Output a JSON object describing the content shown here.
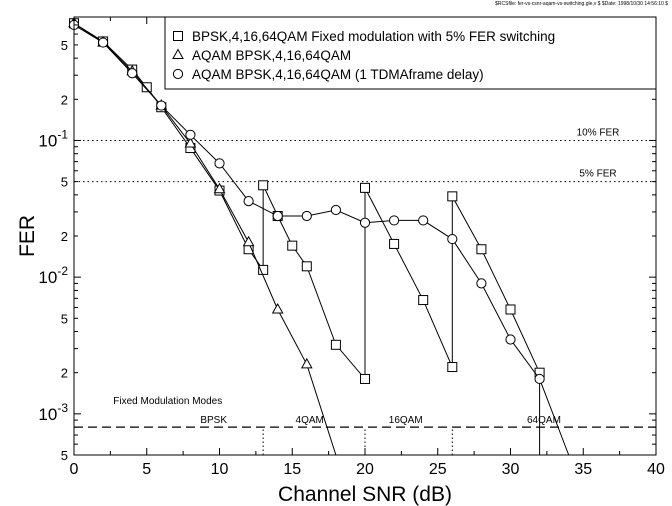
{
  "header_note": "$RCSfile: fer-vs-csnr-aqam-vs-switching.gle,v $ $Date: 1998/10/30 14:56:10 $",
  "chart_data": {
    "type": "line",
    "xlabel": "Channel SNR (dB)",
    "ylabel": "FER",
    "xlim": [
      0,
      40
    ],
    "ylim": [
      0.0005,
      0.8
    ],
    "y_scale": "log",
    "grid": false,
    "legend_position": "top-right",
    "x_ticks": [
      "0",
      "5",
      "10",
      "15",
      "20",
      "25",
      "30",
      "35",
      "40"
    ],
    "y_ticks": [
      {
        "value": 0.5,
        "mant": "5",
        "exp": ""
      },
      {
        "value": 0.2,
        "mant": "2",
        "exp": ""
      },
      {
        "value": 0.1,
        "mant": "10",
        "exp": "-1"
      },
      {
        "value": 0.05,
        "mant": "5",
        "exp": ""
      },
      {
        "value": 0.02,
        "mant": "2",
        "exp": ""
      },
      {
        "value": 0.01,
        "mant": "10",
        "exp": "-2"
      },
      {
        "value": 0.005,
        "mant": "5",
        "exp": ""
      },
      {
        "value": 0.002,
        "mant": "2",
        "exp": ""
      },
      {
        "value": 0.001,
        "mant": "10",
        "exp": "-3"
      },
      {
        "value": 0.0005,
        "mant": "5",
        "exp": ""
      }
    ],
    "series": [
      {
        "name": "BPSK,4,16,64QAM Fixed modulation with 5% FER switching",
        "marker": "square",
        "x": [
          0,
          2,
          4,
          5,
          6,
          8,
          10,
          12,
          13,
          13,
          14,
          15,
          16,
          18,
          20,
          20,
          22,
          24,
          26,
          26,
          28,
          30,
          32,
          32
        ],
        "y": [
          0.72,
          0.53,
          0.33,
          0.245,
          0.175,
          0.088,
          0.043,
          0.016,
          0.0113,
          0.047,
          0.028,
          0.017,
          0.012,
          0.0032,
          0.0018,
          0.045,
          0.0175,
          0.0068,
          0.0022,
          0.039,
          0.016,
          0.0058,
          0.002,
          0.0004
        ]
      },
      {
        "name": "AQAM BPSK,4,16,64QAM",
        "marker": "triangle",
        "x": [
          0,
          2,
          4,
          6,
          8,
          10,
          12,
          14,
          16,
          18
        ],
        "y": [
          0.72,
          0.52,
          0.32,
          0.18,
          0.095,
          0.044,
          0.018,
          0.0058,
          0.0023,
          0.0004
        ]
      },
      {
        "name": "AQAM BPSK,4,16,64QAM (1 TDMAframe delay)",
        "marker": "circle",
        "x": [
          0,
          2,
          4,
          6,
          8,
          10,
          12,
          14,
          16,
          18,
          20,
          22,
          24,
          26,
          28,
          30,
          32,
          34
        ],
        "y": [
          0.7,
          0.52,
          0.31,
          0.18,
          0.11,
          0.068,
          0.036,
          0.028,
          0.028,
          0.031,
          0.025,
          0.026,
          0.026,
          0.019,
          0.009,
          0.0035,
          0.0018,
          0.0004
        ]
      }
    ],
    "reference_lines": [
      {
        "y": 0.1,
        "label": "10% FER",
        "style": "dotted"
      },
      {
        "y": 0.05,
        "label": "5% FER",
        "style": "dotted"
      },
      {
        "y": 0.0008,
        "style": "dashed"
      }
    ],
    "mode_boundaries": [
      13,
      20,
      26
    ],
    "fixed_modulation_title": "Fixed Modulation Modes",
    "mode_labels": [
      {
        "label": "BPSK",
        "x": 9.6
      },
      {
        "label": "4QAM",
        "x": 16.2
      },
      {
        "label": "16QAM",
        "x": 22.8
      },
      {
        "label": "64QAM",
        "x": 32.3
      }
    ]
  }
}
